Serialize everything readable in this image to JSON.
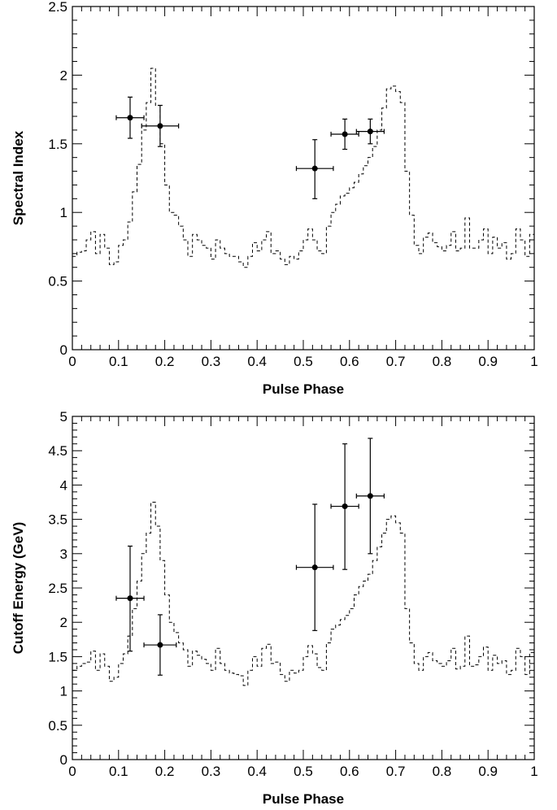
{
  "chart_data": [
    {
      "type": "scatter",
      "title": "",
      "xlabel": "Pulse Phase",
      "ylabel": "Spectral Index",
      "xlim": [
        0,
        1
      ],
      "ylim": [
        0,
        2.5
      ],
      "xticks": [
        0,
        0.1,
        0.2,
        0.3,
        0.4,
        0.5,
        0.6,
        0.7,
        0.8,
        0.9,
        1
      ],
      "xtick_labels": [
        "0",
        "0.1",
        "0.2",
        "0.3",
        "0.4",
        "0.5",
        "0.6",
        "0.7",
        "0.8",
        "0.9",
        "1"
      ],
      "yticks": [
        0,
        0.5,
        1,
        1.5,
        2,
        2.5
      ],
      "ytick_labels": [
        "0",
        "0.5",
        "1",
        "1.5",
        "2",
        "2.5"
      ],
      "grid": false,
      "points": [
        {
          "x": 0.125,
          "y": 1.69,
          "xerr": 0.03,
          "yerr_low": 0.15,
          "yerr_high": 0.15
        },
        {
          "x": 0.19,
          "y": 1.63,
          "xerr": 0.04,
          "yerr_low": 0.15,
          "yerr_high": 0.15
        },
        {
          "x": 0.525,
          "y": 1.32,
          "xerr": 0.04,
          "yerr_low": 0.22,
          "yerr_high": 0.21
        },
        {
          "x": 0.59,
          "y": 1.57,
          "xerr": 0.03,
          "yerr_low": 0.11,
          "yerr_high": 0.11
        },
        {
          "x": 0.645,
          "y": 1.59,
          "xerr": 0.03,
          "yerr_low": 0.09,
          "yerr_high": 0.09
        }
      ],
      "histogram": {
        "style": "dashed",
        "bin_width": 0.01,
        "values": [
          0.68,
          0.71,
          0.72,
          0.8,
          0.86,
          0.7,
          0.84,
          0.74,
          0.62,
          0.64,
          0.76,
          0.8,
          0.93,
          1.15,
          1.35,
          1.6,
          1.8,
          2.05,
          1.78,
          1.5,
          1.2,
          1.0,
          0.98,
          0.9,
          0.8,
          0.68,
          0.84,
          0.8,
          0.76,
          0.74,
          0.66,
          0.8,
          0.74,
          0.7,
          0.68,
          0.68,
          0.64,
          0.6,
          0.68,
          0.78,
          0.72,
          0.8,
          0.86,
          0.7,
          0.72,
          0.66,
          0.62,
          0.68,
          0.66,
          0.72,
          0.8,
          0.88,
          0.8,
          0.72,
          0.7,
          0.9,
          1.0,
          1.06,
          1.12,
          1.14,
          1.18,
          1.22,
          1.28,
          1.34,
          1.4,
          1.48,
          1.6,
          1.76,
          1.9,
          1.92,
          1.88,
          1.8,
          1.3,
          0.98,
          0.76,
          0.7,
          0.82,
          0.85,
          0.78,
          0.75,
          0.72,
          0.76,
          0.86,
          0.72,
          0.74,
          0.96,
          0.74,
          0.74,
          0.8,
          0.88,
          0.7,
          0.82,
          0.74,
          0.78,
          0.66,
          0.7,
          0.88,
          0.8,
          0.68,
          0.84,
          0.58,
          0.8,
          0.86,
          0.8,
          0.74,
          0.82,
          0.84,
          0.76,
          0.86,
          0.74,
          0.62,
          0.8,
          0.82,
          0.8,
          0.8,
          0.68
        ]
      }
    },
    {
      "type": "scatter",
      "title": "",
      "xlabel": "Pulse Phase",
      "ylabel": "Cutoff Energy (GeV)",
      "xlim": [
        0,
        1
      ],
      "ylim": [
        0,
        5
      ],
      "xticks": [
        0,
        0.1,
        0.2,
        0.3,
        0.4,
        0.5,
        0.6,
        0.7,
        0.8,
        0.9,
        1
      ],
      "xtick_labels": [
        "0",
        "0.1",
        "0.2",
        "0.3",
        "0.4",
        "0.5",
        "0.6",
        "0.7",
        "0.8",
        "0.9",
        "1"
      ],
      "yticks": [
        0,
        0.5,
        1,
        1.5,
        2,
        2.5,
        3,
        3.5,
        4,
        4.5,
        5
      ],
      "ytick_labels": [
        "0",
        "0.5",
        "1",
        "1.5",
        "2",
        "2.5",
        "3",
        "3.5",
        "4",
        "4.5",
        "5"
      ],
      "grid": false,
      "points": [
        {
          "x": 0.125,
          "y": 2.35,
          "xerr": 0.03,
          "yerr_low": 0.77,
          "yerr_high": 0.76
        },
        {
          "x": 0.19,
          "y": 1.67,
          "xerr": 0.035,
          "yerr_low": 0.44,
          "yerr_high": 0.44
        },
        {
          "x": 0.525,
          "y": 2.8,
          "xerr": 0.04,
          "yerr_low": 0.92,
          "yerr_high": 0.92
        },
        {
          "x": 0.59,
          "y": 3.69,
          "xerr": 0.03,
          "yerr_low": 0.92,
          "yerr_high": 0.91
        },
        {
          "x": 0.645,
          "y": 3.84,
          "xerr": 0.03,
          "yerr_low": 0.84,
          "yerr_high": 0.84
        }
      ],
      "histogram": {
        "style": "dashed",
        "bin_width": 0.01,
        "values": [
          1.3,
          1.36,
          1.4,
          1.42,
          1.58,
          1.3,
          1.54,
          1.36,
          1.14,
          1.2,
          1.4,
          1.54,
          1.8,
          2.2,
          2.6,
          3.0,
          3.3,
          3.75,
          3.4,
          2.9,
          2.4,
          2.0,
          1.85,
          1.7,
          1.6,
          1.36,
          1.58,
          1.52,
          1.46,
          1.4,
          1.3,
          1.62,
          1.4,
          1.3,
          1.26,
          1.24,
          1.22,
          1.08,
          1.3,
          1.5,
          1.36,
          1.62,
          1.68,
          1.4,
          1.42,
          1.24,
          1.14,
          1.3,
          1.26,
          1.3,
          1.5,
          1.66,
          1.54,
          1.34,
          1.3,
          1.7,
          1.9,
          1.96,
          2.04,
          2.1,
          2.2,
          2.4,
          2.52,
          2.6,
          2.7,
          2.9,
          3.1,
          3.3,
          3.5,
          3.55,
          3.45,
          3.3,
          2.2,
          1.7,
          1.4,
          1.3,
          1.5,
          1.56,
          1.44,
          1.4,
          1.36,
          1.44,
          1.62,
          1.32,
          1.36,
          1.8,
          1.36,
          1.38,
          1.5,
          1.64,
          1.3,
          1.52,
          1.4,
          1.44,
          1.24,
          1.3,
          1.62,
          1.5,
          1.24,
          1.56,
          1.06,
          1.44,
          1.6,
          1.5,
          1.36,
          1.48,
          1.52,
          1.42,
          1.62,
          1.4,
          1.14,
          1.5,
          1.48,
          1.46,
          1.46,
          1.3
        ]
      }
    }
  ]
}
